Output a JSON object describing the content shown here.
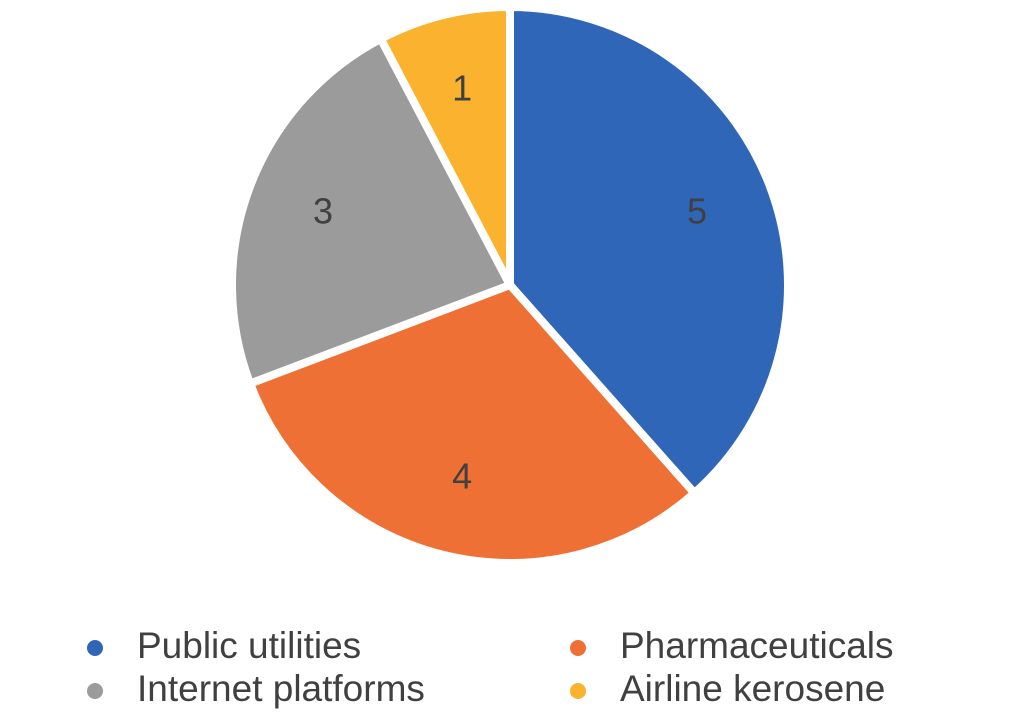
{
  "chart_data": {
    "type": "pie",
    "categories": [
      "Public utilities",
      "Pharmaceuticals",
      "Internet platforms",
      "Airline kerosene"
    ],
    "values": [
      5,
      4,
      3,
      1
    ],
    "colors": [
      "#3066b8",
      "#ef7035",
      "#9b9b9b",
      "#fbb22e"
    ]
  }
}
